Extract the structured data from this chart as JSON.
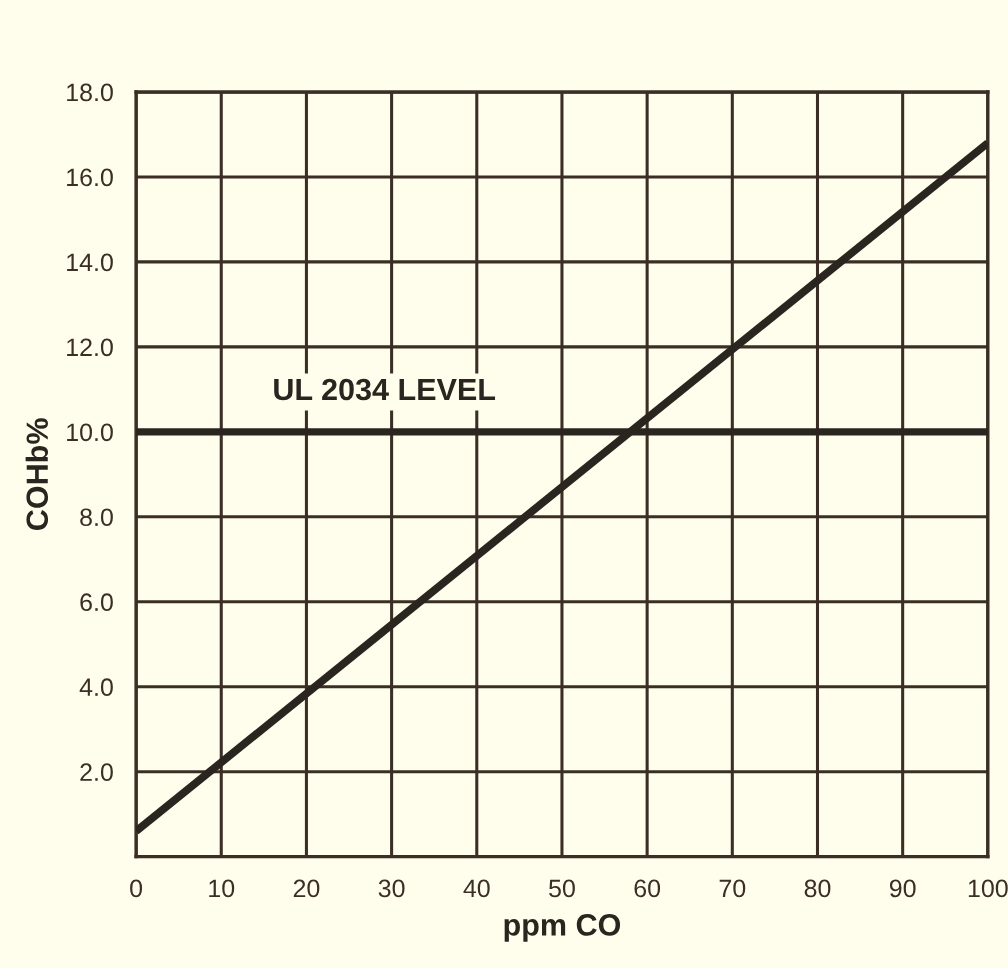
{
  "chart_data": {
    "type": "line",
    "xlabel": "ppm CO",
    "ylabel": "COHb%",
    "x": [
      0,
      100
    ],
    "series": [
      {
        "color": "#2b2520",
        "values": [
          0.6,
          16.8
        ]
      }
    ],
    "xlim": [
      0,
      100
    ],
    "xticks": [
      0,
      10,
      20,
      30,
      40,
      50,
      60,
      70,
      80,
      90,
      100
    ],
    "ylim": [
      0,
      18
    ],
    "yticks": [
      {
        "value": 2,
        "label": "2.0"
      },
      {
        "value": 4,
        "label": "4.0"
      },
      {
        "value": 6,
        "label": "6.0"
      },
      {
        "value": 8,
        "label": "8.0"
      },
      {
        "value": 10,
        "label": "10.0"
      },
      {
        "value": 12,
        "label": "12.0"
      },
      {
        "value": 14,
        "label": "14.0"
      },
      {
        "value": 16,
        "label": "16.0"
      },
      {
        "value": 18,
        "label": "18.0"
      }
    ],
    "ref_lines": [
      {
        "axis": "y",
        "value": 10,
        "label": "UL 2034 LEVEL",
        "color": "#2b2520"
      }
    ],
    "grid": true,
    "marker": "none",
    "line_style": "solid"
  }
}
